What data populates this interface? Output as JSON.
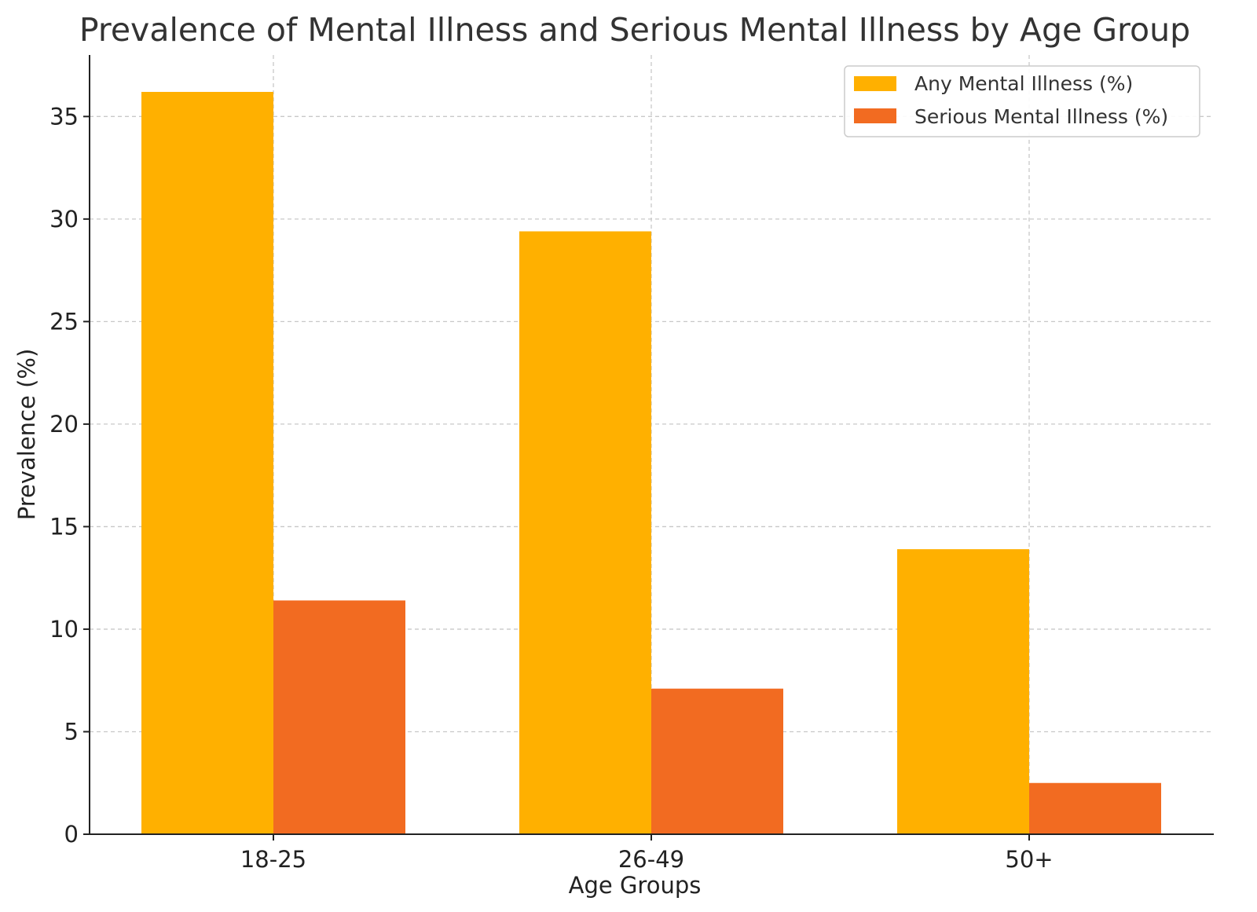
{
  "chart_data": {
    "type": "bar",
    "title": "Prevalence of Mental Illness and Serious Mental Illness by Age Group",
    "xlabel": "Age Groups",
    "ylabel": "Prevalence (%)",
    "categories": [
      "18-25",
      "26-49",
      "50+"
    ],
    "series": [
      {
        "name": "Any Mental Illness (%)",
        "values": [
          36.2,
          29.4,
          13.9
        ],
        "color": "#FFB000"
      },
      {
        "name": "Serious Mental Illness (%)",
        "values": [
          11.4,
          7.1,
          2.5
        ],
        "color": "#F26B21"
      }
    ],
    "ylim": [
      0,
      38
    ],
    "yticks": [
      0,
      5,
      10,
      15,
      20,
      25,
      30,
      35
    ],
    "grid": true,
    "legend_position": "top-right"
  }
}
